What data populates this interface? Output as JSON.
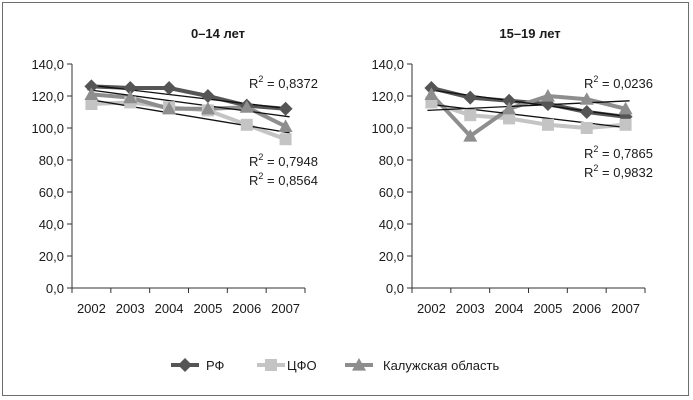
{
  "chart_data": [
    {
      "type": "line",
      "title": "0–14 лет",
      "categories": [
        "2002",
        "2003",
        "2004",
        "2005",
        "2006",
        "2007"
      ],
      "ylim": [
        0,
        140
      ],
      "yticks": [
        "0,0",
        "20,0",
        "40,0",
        "60,0",
        "80,0",
        "100,0",
        "120,0",
        "140,0"
      ],
      "series": [
        {
          "name": "РФ",
          "color": "#555555",
          "marker": "diamond",
          "values": [
            126,
            125,
            125,
            120,
            114,
            112
          ]
        },
        {
          "name": "ЦФО",
          "color": "#c4c4c4",
          "marker": "square",
          "values": [
            115,
            116,
            113,
            111,
            102,
            93
          ]
        },
        {
          "name": "Калужская область",
          "color": "#8e8e8e",
          "marker": "triangle",
          "values": [
            121,
            119,
            112,
            112,
            113,
            101
          ]
        }
      ],
      "trendlines": [
        {
          "series": "РФ",
          "start": 127,
          "end": 112
        },
        {
          "series": "ЦФО",
          "start": 118,
          "end": 97
        },
        {
          "series": "Калужская область",
          "start": 124,
          "end": 107
        }
      ],
      "r2_labels": [
        {
          "prefix": "R",
          "sup": "2",
          "text": " = 0,8372"
        },
        {
          "prefix": "R",
          "sup": "2",
          "text": " = 0,7948"
        },
        {
          "prefix": "R",
          "sup": "2",
          "text": " = 0,8564"
        }
      ]
    },
    {
      "type": "line",
      "title": "15–19 лет",
      "categories": [
        "2002",
        "2003",
        "2004",
        "2005",
        "2006",
        "2007"
      ],
      "ylim": [
        0,
        140
      ],
      "yticks": [
        "0,0",
        "20,0",
        "40,0",
        "60,0",
        "80,0",
        "100,0",
        "120,0",
        "140,0"
      ],
      "series": [
        {
          "name": "РФ",
          "color": "#555555",
          "marker": "diamond",
          "values": [
            125,
            119,
            117,
            115,
            110,
            107
          ]
        },
        {
          "name": "ЦФО",
          "color": "#c4c4c4",
          "marker": "square",
          "values": [
            116,
            108,
            106,
            102,
            100,
            102
          ]
        },
        {
          "name": "Калужская область",
          "color": "#8e8e8e",
          "marker": "triangle",
          "values": [
            121,
            95,
            112,
            120,
            118,
            112
          ]
        }
      ],
      "trendlines": [
        {
          "series": "РФ",
          "start": 124,
          "end": 107
        },
        {
          "series": "ЦФО",
          "start": 115,
          "end": 100
        },
        {
          "series": "Калужская область",
          "start": 111,
          "end": 117
        }
      ],
      "r2_labels": [
        {
          "prefix": "R",
          "sup": "2",
          "text": " = 0,0236"
        },
        {
          "prefix": "R",
          "sup": "2",
          "text": " = 0,7865"
        },
        {
          "prefix": "R",
          "sup": "2",
          "text": " = 0,9832"
        }
      ]
    }
  ],
  "legend": [
    {
      "label": "РФ",
      "color": "#555555",
      "marker": "diamond"
    },
    {
      "label": "ЦФО",
      "color": "#c4c4c4",
      "marker": "square"
    },
    {
      "label": "Калужская область",
      "color": "#8e8e8e",
      "marker": "triangle"
    }
  ]
}
